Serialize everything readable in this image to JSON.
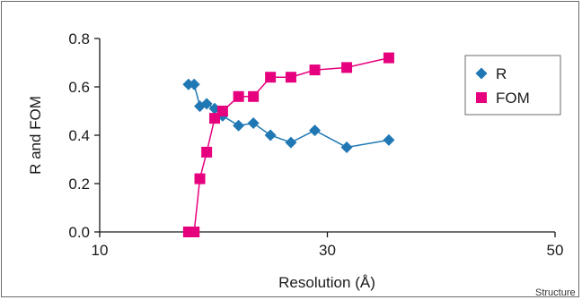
{
  "chart_data": {
    "type": "line",
    "xlabel": "Resolution (Å)",
    "ylabel": "R and FOM",
    "xlim": [
      10,
      50
    ],
    "ylim": [
      0,
      0.8
    ],
    "xticks": [
      "10",
      "30",
      "50"
    ],
    "xtick_values": [
      10,
      30,
      50
    ],
    "yticks": [
      "0.0",
      "0.2",
      "0.4",
      "0.6",
      "0.8"
    ],
    "ytick_values": [
      0,
      0.2,
      0.4,
      0.6,
      0.8
    ],
    "grid": false,
    "legend_position": "top-right",
    "series": [
      {
        "name": "R",
        "marker": "diamond",
        "color": "#1f78b4",
        "x": [
          17.8,
          18.3,
          18.8,
          19.4,
          20.1,
          20.8,
          22.2,
          23.5,
          25.0,
          26.8,
          28.9,
          31.7,
          35.4
        ],
        "y": [
          0.61,
          0.61,
          0.52,
          0.53,
          0.51,
          0.48,
          0.44,
          0.45,
          0.4,
          0.37,
          0.42,
          0.35,
          0.38
        ]
      },
      {
        "name": "FOM",
        "marker": "square",
        "color": "#e6007e",
        "x": [
          17.8,
          18.3,
          18.8,
          19.4,
          20.1,
          20.8,
          22.2,
          23.5,
          25.0,
          26.8,
          28.9,
          31.7,
          35.4
        ],
        "y": [
          0.0,
          0.0,
          0.22,
          0.33,
          0.47,
          0.5,
          0.56,
          0.56,
          0.64,
          0.64,
          0.67,
          0.68,
          0.72
        ]
      }
    ]
  },
  "credit": "Structure"
}
